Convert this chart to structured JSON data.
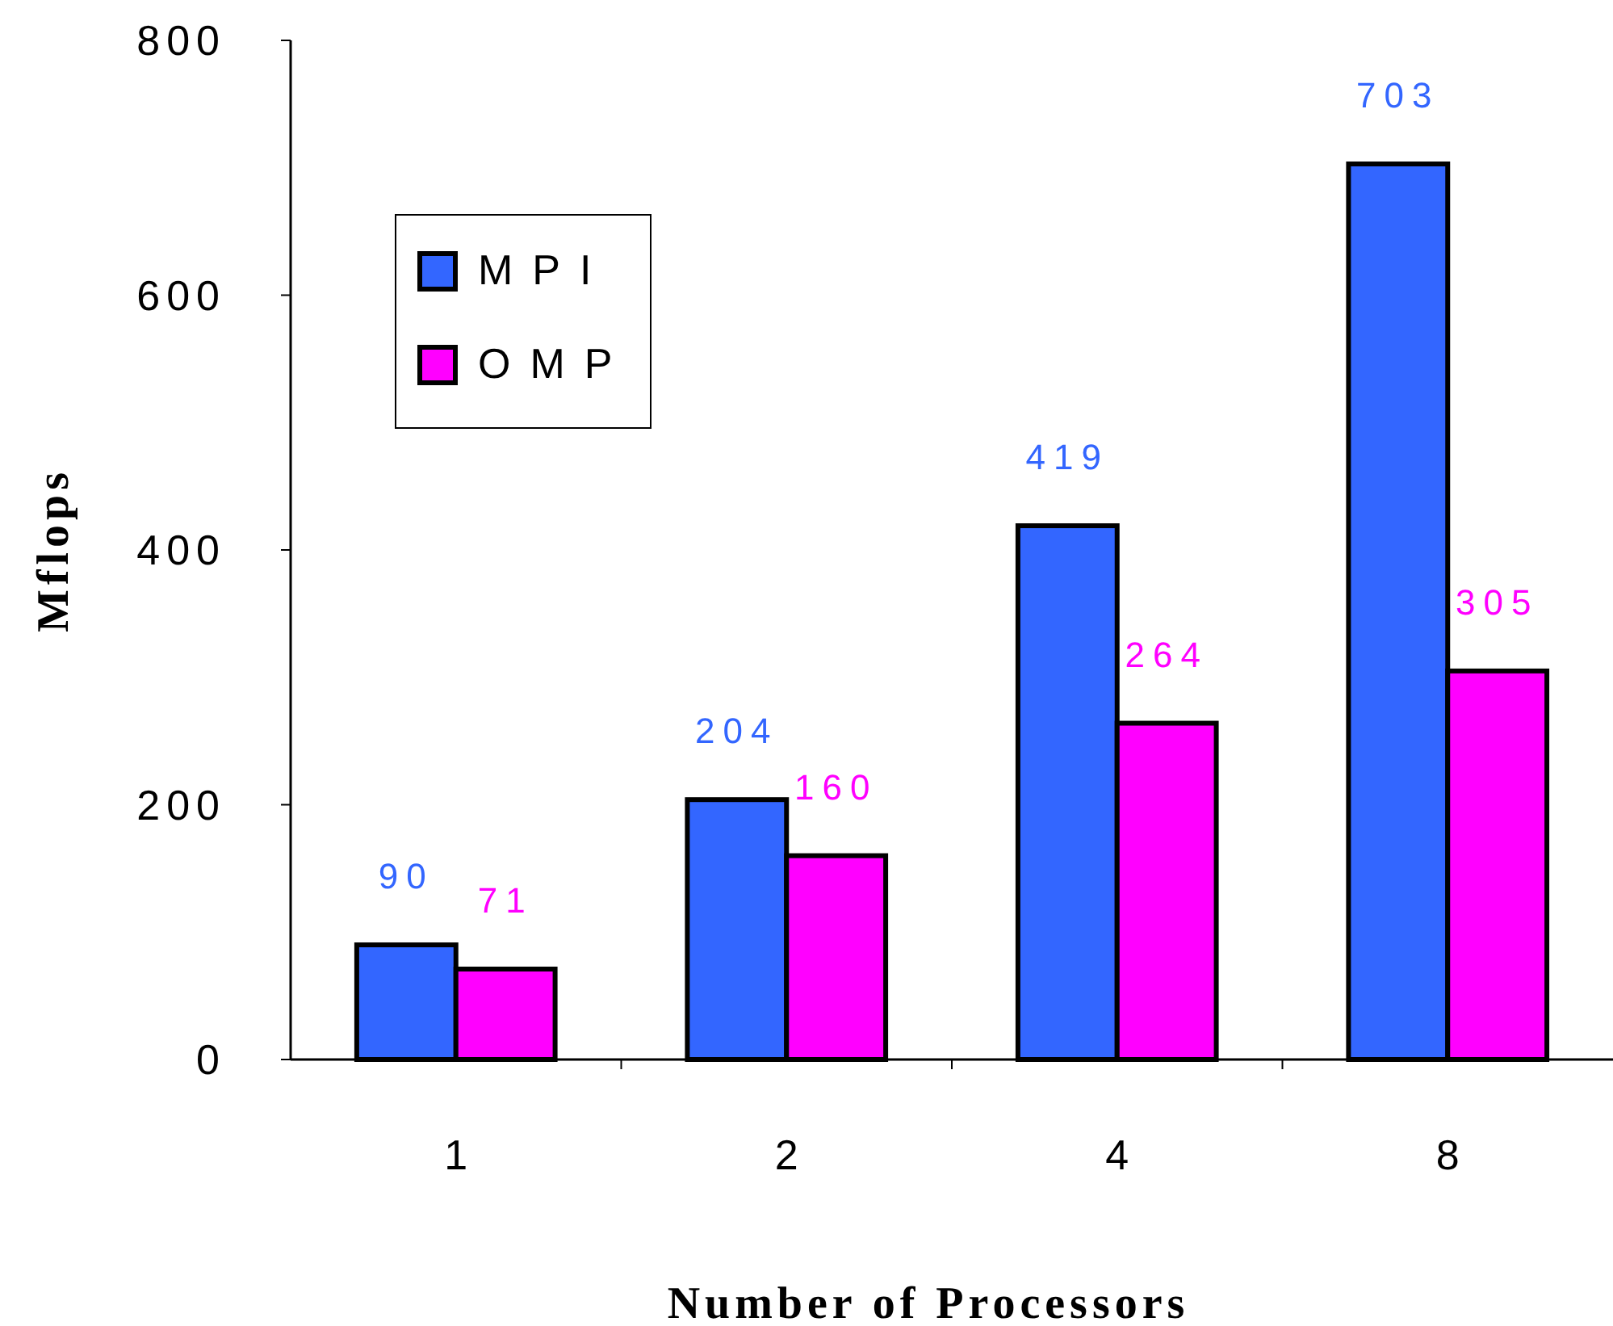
{
  "chart_data": {
    "type": "bar",
    "xlabel": "Number of Processors",
    "ylabel": "Mflops",
    "categories": [
      "1",
      "2",
      "4",
      "8"
    ],
    "series": [
      {
        "name": "MPI",
        "color": "#3366ff",
        "values": [
          90,
          204,
          419,
          703
        ]
      },
      {
        "name": "OMP",
        "color": "#ff00ff",
        "values": [
          71,
          160,
          264,
          305
        ]
      }
    ],
    "ylim": [
      0,
      800
    ],
    "yticks": [
      0,
      200,
      400,
      600,
      800
    ],
    "grid": false,
    "legend": "top left",
    "data_labels": true
  }
}
